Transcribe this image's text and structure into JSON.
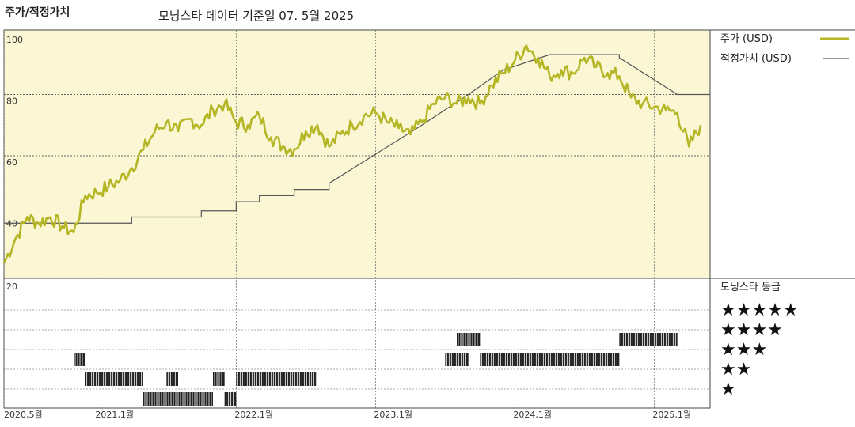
{
  "header": {
    "left_title": "주가/적정가치",
    "center_title": "모닝스타 데이터 기준일 07. 5월 2025"
  },
  "legend": {
    "price_label": "주가 (USD)",
    "fair_label": "적정가치 (USD)",
    "rating_title": "모닝스타 등급",
    "stars": [
      "★★★★★",
      "★★★★",
      "★★★",
      "★★",
      "★"
    ]
  },
  "colors": {
    "price": "#b5b626",
    "fair": "#555555",
    "panel_bg": "#fbf7d4",
    "rating_bar": "#222222"
  },
  "chart_data": {
    "type": "line",
    "title": "모닝스타 데이터 기준일 07. 5월 2025",
    "ylim": [
      20,
      100
    ],
    "y_ticks": [
      "100",
      "80",
      "60",
      "40",
      "20"
    ],
    "y_tick_values": [
      100,
      80,
      60,
      40,
      20
    ],
    "x_tick_labels": [
      "2020,5월",
      "2021,1월",
      "2022,1월",
      "2023,1월",
      "2024,1월",
      "2025,1월"
    ],
    "x_tick_dates": [
      "2020-05",
      "2021-01",
      "2022-01",
      "2023-01",
      "2024-01",
      "2025-01"
    ],
    "x_range": [
      "2020-05",
      "2025-05"
    ],
    "series": [
      {
        "name": "주가 (USD)",
        "points": [
          [
            "2020-05",
            25
          ],
          [
            "2020-06",
            33
          ],
          [
            "2020-07",
            40
          ],
          [
            "2020-08",
            38
          ],
          [
            "2020-09",
            40
          ],
          [
            "2020-10",
            37
          ],
          [
            "2020-11",
            35
          ],
          [
            "2020-12",
            47
          ],
          [
            "2021-01",
            48
          ],
          [
            "2021-02",
            50
          ],
          [
            "2021-03",
            52
          ],
          [
            "2021-04",
            56
          ],
          [
            "2021-05",
            62
          ],
          [
            "2021-06",
            68
          ],
          [
            "2021-07",
            71
          ],
          [
            "2021-08",
            68
          ],
          [
            "2021-09",
            72
          ],
          [
            "2021-10",
            70
          ],
          [
            "2021-11",
            75
          ],
          [
            "2021-12",
            77
          ],
          [
            "2022-01",
            71
          ],
          [
            "2022-02",
            70
          ],
          [
            "2022-03",
            73
          ],
          [
            "2022-04",
            66
          ],
          [
            "2022-05",
            63
          ],
          [
            "2022-06",
            62
          ],
          [
            "2022-07",
            68
          ],
          [
            "2022-08",
            70
          ],
          [
            "2022-09",
            63
          ],
          [
            "2022-10",
            67
          ],
          [
            "2022-11",
            70
          ],
          [
            "2022-12",
            73
          ],
          [
            "2023-01",
            74
          ],
          [
            "2023-02",
            71
          ],
          [
            "2023-03",
            69
          ],
          [
            "2023-04",
            67
          ],
          [
            "2023-05",
            71
          ],
          [
            "2023-06",
            77
          ],
          [
            "2023-07",
            79
          ],
          [
            "2023-08",
            77
          ],
          [
            "2023-09",
            79
          ],
          [
            "2023-10",
            77
          ],
          [
            "2023-11",
            83
          ],
          [
            "2023-12",
            87
          ],
          [
            "2024-01",
            91
          ],
          [
            "2024-02",
            96
          ],
          [
            "2024-03",
            92
          ],
          [
            "2024-04",
            86
          ],
          [
            "2024-05",
            88
          ],
          [
            "2024-06",
            87
          ],
          [
            "2024-07",
            92
          ],
          [
            "2024-08",
            89
          ],
          [
            "2024-09",
            87
          ],
          [
            "2024-10",
            86
          ],
          [
            "2024-11",
            79
          ],
          [
            "2024-12",
            77
          ],
          [
            "2025-01",
            76
          ],
          [
            "2025-02",
            75
          ],
          [
            "2025-03",
            74
          ],
          [
            "2025-04",
            63
          ],
          [
            "2025-05",
            70
          ]
        ]
      },
      {
        "name": "적정가치 (USD)",
        "step": true,
        "points": [
          [
            "2020-05",
            38
          ],
          [
            "2020-11",
            38
          ],
          [
            "2021-04",
            40
          ],
          [
            "2021-10",
            42
          ],
          [
            "2022-01",
            45
          ],
          [
            "2022-03",
            47
          ],
          [
            "2022-06",
            49
          ],
          [
            "2022-09",
            51
          ],
          [
            "2023-05",
            70
          ],
          [
            "2023-09",
            80
          ],
          [
            "2023-12",
            88
          ],
          [
            "2024-04",
            93
          ],
          [
            "2024-10",
            92
          ],
          [
            "2025-03",
            80
          ]
        ]
      }
    ],
    "rating_rows": [
      5,
      4,
      3,
      2,
      1
    ],
    "rating_spans": [
      {
        "stars": 4,
        "from": "2023-08",
        "to": "2023-10"
      },
      {
        "stars": 4,
        "from": "2024-10",
        "to": "2025-03"
      },
      {
        "stars": 3,
        "from": "2020-11",
        "to": "2020-12"
      },
      {
        "stars": 3,
        "from": "2023-07",
        "to": "2023-09"
      },
      {
        "stars": 3,
        "from": "2023-10",
        "to": "2024-10"
      },
      {
        "stars": 2,
        "from": "2020-12",
        "to": "2021-05"
      },
      {
        "stars": 2,
        "from": "2021-07",
        "to": "2021-08"
      },
      {
        "stars": 2,
        "from": "2021-11",
        "to": "2021-12"
      },
      {
        "stars": 2,
        "from": "2022-01",
        "to": "2022-08"
      },
      {
        "stars": 1,
        "from": "2021-05",
        "to": "2021-11"
      },
      {
        "stars": 1,
        "from": "2021-12",
        "to": "2022-01"
      }
    ]
  }
}
